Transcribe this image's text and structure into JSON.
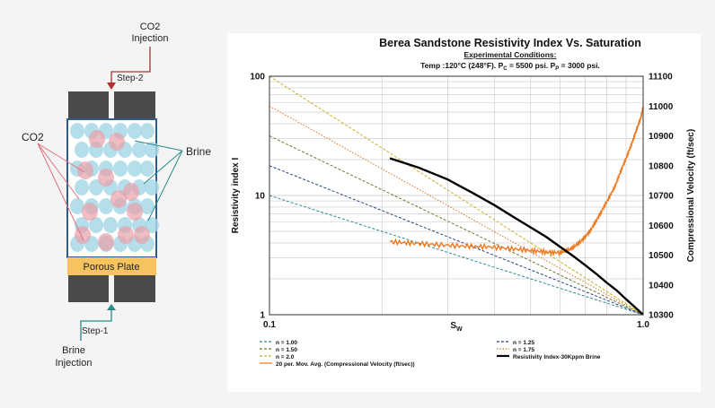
{
  "diagram": {
    "co2_injection": [
      "CO2",
      "Injection"
    ],
    "step2": "Step-2",
    "co2_label": "CO2",
    "brine_label": "Brine",
    "porous_plate": "Porous Plate",
    "step1": "Step-1",
    "brine_injection": [
      "Brine",
      "Injection"
    ],
    "colors": {
      "cap": "#4a4a4a",
      "frame": "#2f5d8a",
      "plate": "#f5c45e",
      "brine": "#a8d8e8",
      "co2": "#e8a0a8",
      "red_arrow": "#b03030",
      "teal_arrow": "#2a8a8a"
    }
  },
  "chart_data": {
    "type": "line",
    "title": "Berea Sandstone Resistivity Index Vs. Saturation",
    "subtitle": "Experimental Conditions:",
    "conditions": {
      "temp": "Temp :120°C (248°F).",
      "pc_label": "P",
      "pc_sub": "C",
      "pc_value": " = 5500 psi.",
      "pp_label": "P",
      "pp_sub": "P",
      "pp_value": " = 3000 psi."
    },
    "xlabel": "S",
    "xlabel_sub": "W",
    "ylabel": "Resistivity index I",
    "y2label": "Compressional Velocity (ft/sec)",
    "x_scale": "log",
    "y_scale": "log",
    "xlim": [
      0.1,
      1.0
    ],
    "ylim": [
      1,
      100
    ],
    "y2lim": [
      10300,
      11100
    ],
    "x_ticks": [
      "0.1",
      "1.0"
    ],
    "y_ticks": [
      "1",
      "10",
      "100"
    ],
    "y2_ticks": [
      "10300",
      "10400",
      "10500",
      "10600",
      "10700",
      "10800",
      "10900",
      "11000",
      "11100"
    ],
    "grid": true,
    "legend_position": "bottom",
    "series": [
      {
        "name": "n = 1.00",
        "kind": "archie",
        "n": 1.0,
        "color": "#2a8a8a",
        "style": "dashed"
      },
      {
        "name": "n = 1.25",
        "kind": "archie",
        "n": 1.25,
        "color": "#2a3f8a",
        "style": "dashed"
      },
      {
        "name": "n = 1.50",
        "kind": "archie",
        "n": 1.5,
        "color": "#6a7a2a",
        "style": "dashed"
      },
      {
        "name": "n = 1.75",
        "kind": "archie",
        "n": 1.75,
        "color": "#e07020",
        "style": "dotted"
      },
      {
        "name": "n = 2.0",
        "kind": "archie",
        "n": 2.0,
        "color": "#c8b020",
        "style": "dashed"
      },
      {
        "name": "20 per. Mov. Avg. (Compressional Velocity (ft/sec))",
        "kind": "velocity",
        "color": "#f07820",
        "style": "solid",
        "x": [
          0.21,
          0.24,
          0.28,
          0.33,
          0.38,
          0.44,
          0.5,
          0.55,
          0.6,
          0.64,
          0.68,
          0.72,
          0.76,
          0.8,
          0.84,
          0.87,
          0.9,
          0.93,
          0.96,
          0.985,
          1.0
        ],
        "y": [
          10545,
          10540,
          10535,
          10530,
          10528,
          10522,
          10515,
          10510,
          10508,
          10520,
          10545,
          10580,
          10630,
          10680,
          10730,
          10780,
          10825,
          10870,
          10920,
          10960,
          10995
        ]
      },
      {
        "name": "Resistivity Index-30Kppm Brine",
        "kind": "resistivity",
        "color": "#000000",
        "style": "solid",
        "x": [
          0.21,
          0.25,
          0.3,
          0.35,
          0.4,
          0.45,
          0.5,
          0.55,
          0.6,
          0.65,
          0.7,
          0.75,
          0.8,
          0.85,
          0.9,
          0.95,
          1.0
        ],
        "y": [
          20.5,
          17.2,
          13.6,
          10.5,
          8.3,
          6.6,
          5.4,
          4.5,
          3.7,
          3.1,
          2.6,
          2.2,
          1.85,
          1.6,
          1.35,
          1.16,
          1.0
        ]
      }
    ],
    "legend": [
      "n = 1.00",
      "n = 1.25",
      "n = 1.50",
      "n = 1.75",
      "n = 2.0",
      "Resistivity Index-30Kppm Brine",
      "20 per. Mov. Avg. (Compressional Velocity (ft/sec))"
    ]
  }
}
